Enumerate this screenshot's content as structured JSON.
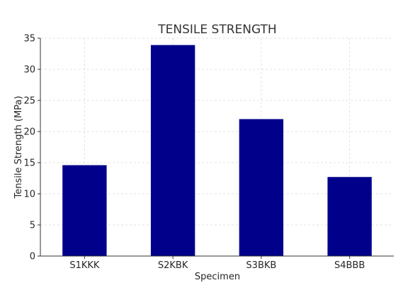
{
  "chart_data": {
    "type": "bar",
    "title": "TENSILE STRENGTH",
    "xlabel": "Specimen",
    "ylabel": "Tensile Strength (MPa)",
    "categories": [
      "S1KKK",
      "S2KBK",
      "S3BKB",
      "S4BBB"
    ],
    "values": [
      14.6,
      33.9,
      22.0,
      12.7
    ],
    "ylim": [
      0,
      35
    ],
    "yticks": [
      0,
      5,
      10,
      15,
      20,
      25,
      30,
      35
    ],
    "grid": true,
    "bar_color": "#00008b"
  }
}
